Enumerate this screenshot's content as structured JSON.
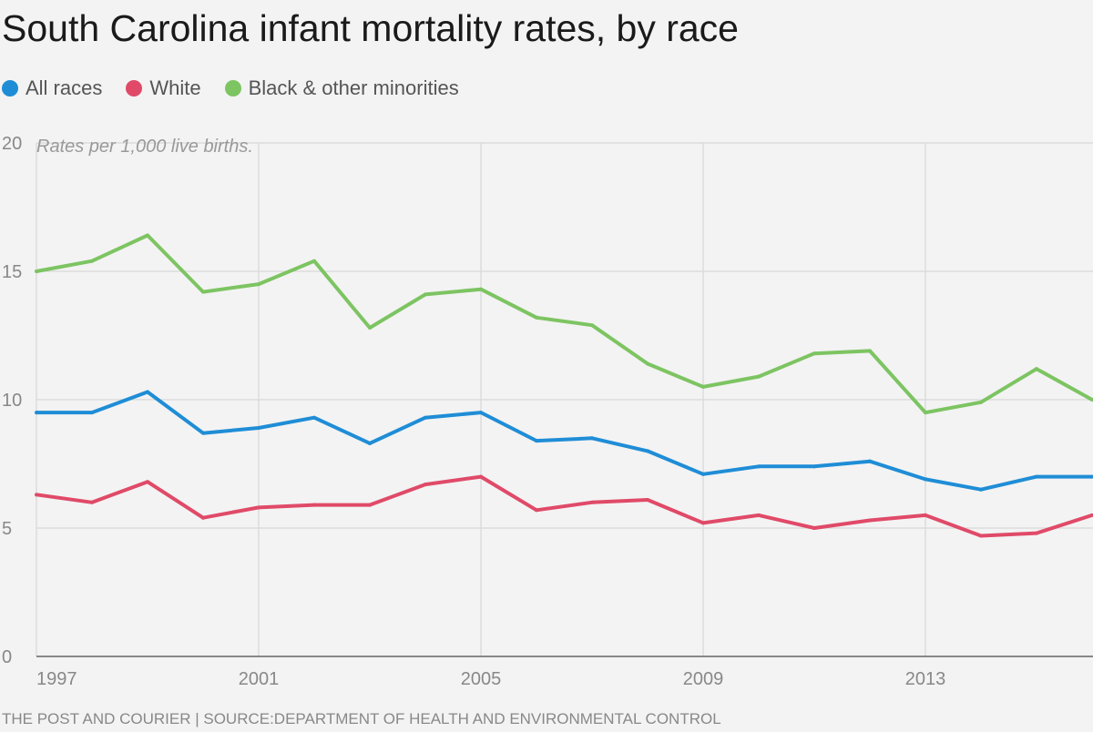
{
  "chart_data": {
    "type": "line",
    "title": "South Carolina infant mortality rates, by race",
    "annotation": "Rates per 1,000 live births.",
    "x": [
      1997,
      1998,
      1999,
      2000,
      2001,
      2002,
      2003,
      2004,
      2005,
      2006,
      2007,
      2008,
      2009,
      2010,
      2011,
      2012,
      2013,
      2014,
      2015,
      2016
    ],
    "xticks": [
      "1997",
      "2001",
      "2005",
      "2009",
      "2013"
    ],
    "yticks": [
      "0",
      "5",
      "10",
      "15",
      "20"
    ],
    "ylim": [
      0,
      20
    ],
    "xlim": [
      1997,
      2016
    ],
    "grid": true,
    "legend_placement": "top-left",
    "series": [
      {
        "name": "All races",
        "color": "#1f8dd6",
        "values": [
          9.5,
          9.5,
          10.3,
          8.7,
          8.9,
          9.3,
          8.3,
          9.3,
          9.5,
          8.4,
          8.5,
          8.0,
          7.1,
          7.4,
          7.4,
          7.6,
          6.9,
          6.5,
          7.0,
          7.0
        ]
      },
      {
        "name": "White",
        "color": "#e04a68",
        "values": [
          6.3,
          6.0,
          6.8,
          5.4,
          5.8,
          5.9,
          5.9,
          6.7,
          7.0,
          5.7,
          6.0,
          6.1,
          5.2,
          5.5,
          5.0,
          5.3,
          5.5,
          4.7,
          4.8,
          5.5
        ]
      },
      {
        "name": "Black & other minorities",
        "color": "#7dc462",
        "values": [
          15.0,
          15.4,
          16.4,
          14.2,
          14.5,
          15.4,
          12.8,
          14.1,
          14.3,
          13.2,
          12.9,
          11.4,
          10.5,
          10.9,
          11.8,
          11.9,
          9.5,
          9.9,
          11.2,
          10.0
        ]
      }
    ]
  },
  "footer": "THE POST AND COURIER | SOURCE:DEPARTMENT OF HEALTH AND ENVIRONMENTAL CONTROL"
}
